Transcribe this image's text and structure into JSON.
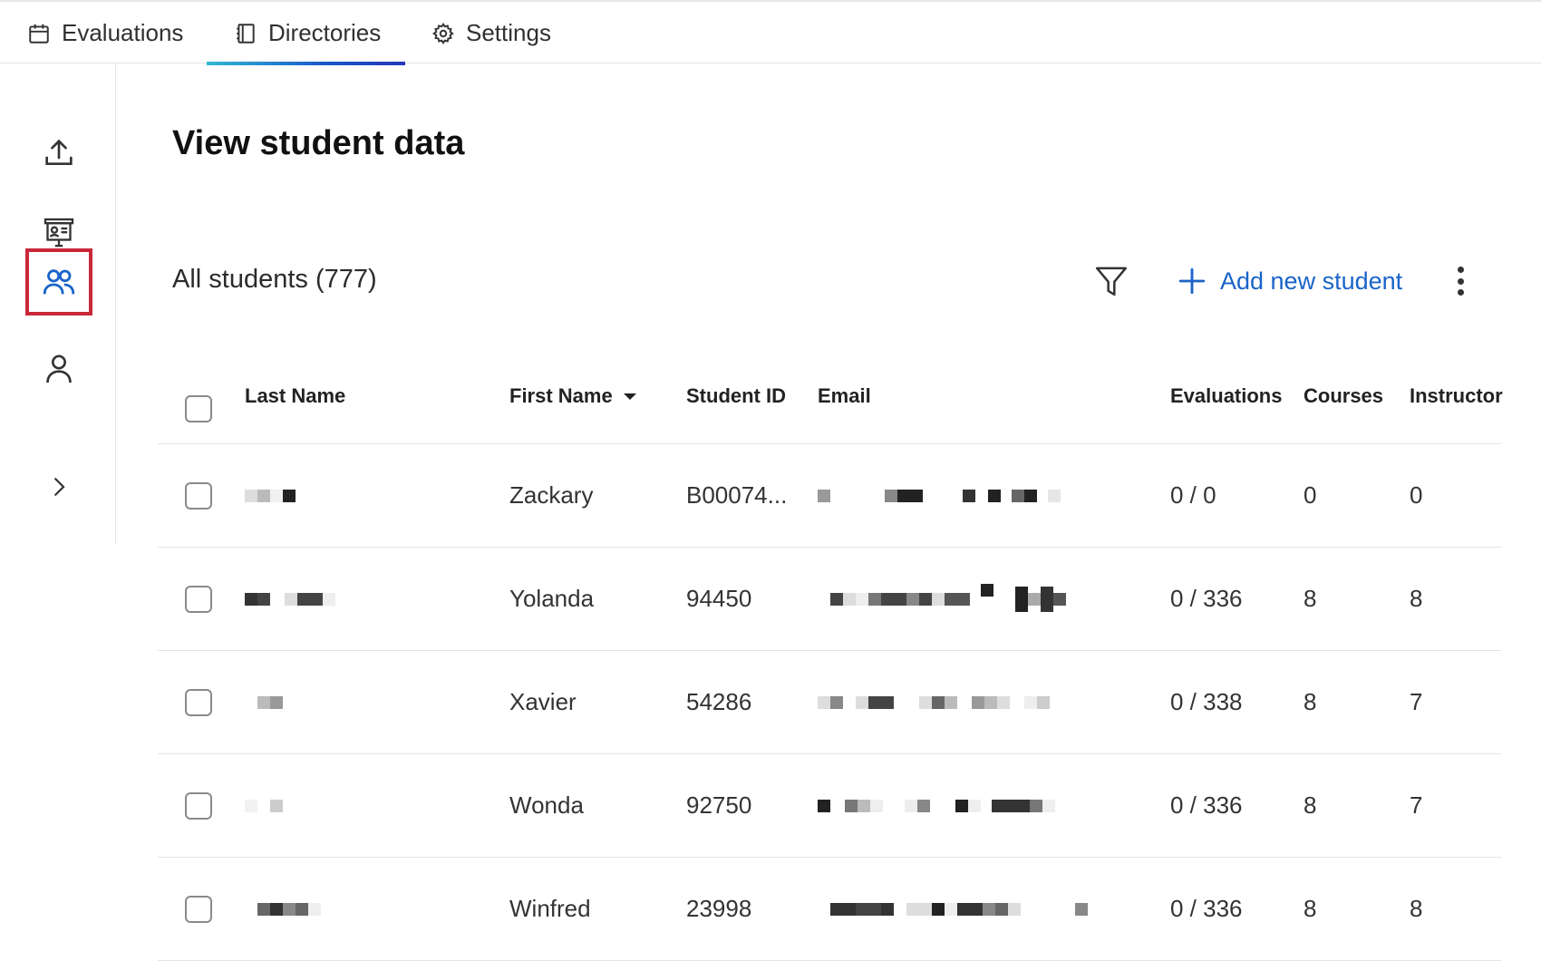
{
  "tabs": [
    {
      "label": "Evaluations",
      "icon": "calendar-icon"
    },
    {
      "label": "Directories",
      "icon": "directory-icon",
      "active": true
    },
    {
      "label": "Settings",
      "icon": "gear-icon"
    }
  ],
  "sidebar": {
    "items": [
      {
        "icon": "upload-icon"
      },
      {
        "icon": "presentation-icon"
      },
      {
        "icon": "students-icon",
        "selected": true
      },
      {
        "icon": "person-icon"
      },
      {
        "icon": "chevron-right-icon"
      }
    ]
  },
  "main": {
    "title": "View student data",
    "count_label": "All students (777)",
    "add_label": "Add new student"
  },
  "table": {
    "headers": {
      "last_name": "Last Name",
      "first_name": "First Name",
      "student_id": "Student ID",
      "email": "Email",
      "evaluations": "Evaluations",
      "courses": "Courses",
      "instructor": "Instructor"
    },
    "rows": [
      {
        "first_name": "Zackary",
        "student_id": "B00074...",
        "evaluations": "0 / 0",
        "courses": "0",
        "instructor": "0"
      },
      {
        "first_name": "Yolanda",
        "student_id": "94450",
        "evaluations": "0 / 336",
        "courses": "8",
        "instructor": "8"
      },
      {
        "first_name": "Xavier",
        "student_id": "54286",
        "evaluations": "0 / 338",
        "courses": "8",
        "instructor": "7"
      },
      {
        "first_name": "Wonda",
        "student_id": "92750",
        "evaluations": "0 / 336",
        "courses": "8",
        "instructor": "7"
      },
      {
        "first_name": "Winfred",
        "student_id": "23998",
        "evaluations": "0 / 336",
        "courses": "8",
        "instructor": "8"
      }
    ]
  },
  "colors": {
    "accent": "#1a64c9",
    "highlight": "#c8283a",
    "tab_underline_start": "#2fb8d2",
    "tab_underline_end": "#2436b8"
  }
}
